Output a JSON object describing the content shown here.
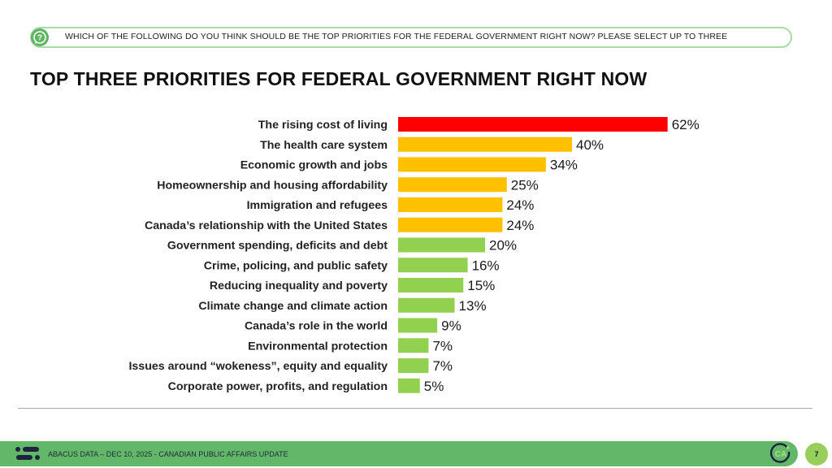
{
  "question": {
    "icon": "question-bubble-icon",
    "text": "WHICH OF THE FOLLOWING DO YOU THINK SHOULD BE THE TOP PRIORITIES FOR THE FEDERAL GOVERNMENT RIGHT NOW? PLEASE SELECT UP TO THREE"
  },
  "colors": {
    "top": "#ff0000",
    "high": "#ffc000",
    "low": "#92d050",
    "footer": "#63b768",
    "page_badge": "#98cf5c"
  },
  "chart_data": {
    "type": "bar",
    "orientation": "horizontal",
    "title": "TOP THREE PRIORITIES FOR FEDERAL GOVERNMENT RIGHT NOW",
    "xlabel": "",
    "ylabel": "",
    "xlim": [
      0,
      100
    ],
    "value_suffix": "%",
    "grid": false,
    "categories": [
      "The rising cost of living",
      "The health care system",
      "Economic growth and jobs",
      "Homeownership and housing affordability",
      "Immigration and refugees",
      "Canada’s relationship with the United States",
      "Government spending, deficits and debt",
      "Crime, policing, and public safety",
      "Reducing inequality and poverty",
      "Climate change and climate action",
      "Canada’s role in the world",
      "Environmental protection",
      "Issues around “wokeness”, equity and equality",
      "Corporate power, profits, and regulation"
    ],
    "values": [
      62,
      40,
      34,
      25,
      24,
      24,
      20,
      16,
      15,
      13,
      9,
      7,
      7,
      5
    ],
    "labels": [
      "62%",
      "40%",
      "34%",
      "25%",
      "24%",
      "24%",
      "20%",
      "16%",
      "15%",
      "13%",
      "9%",
      "7%",
      "7%",
      "5%"
    ],
    "bar_color_groups": [
      "top",
      "high",
      "high",
      "high",
      "high",
      "high",
      "low",
      "low",
      "low",
      "low",
      "low",
      "low",
      "low",
      "low"
    ]
  },
  "footer": {
    "text": "ABACUS DATA  – DEC 10, 2025 - CANADIAN PUBLIC AFFAIRS UPDATE",
    "logo": "abacus-logo-icon",
    "badge": "CA",
    "page_number": "7"
  }
}
